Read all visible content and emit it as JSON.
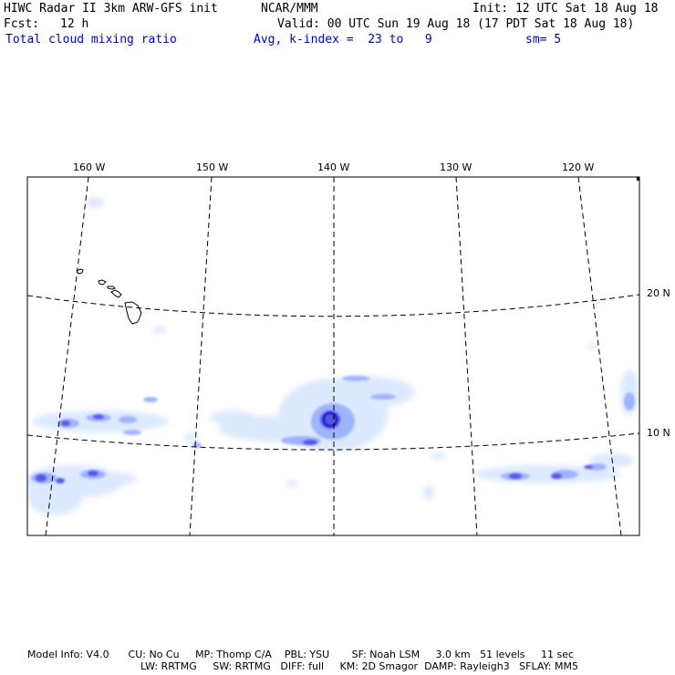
{
  "header": {
    "title": "HIWC Radar II 3km ARW-GFS init",
    "org": "NCAR/MMM",
    "init": "Init: 12 UTC Sat 18 Aug 18",
    "fcst_label": "Fcst:",
    "fcst_value": "12 h",
    "valid": "Valid: 00 UTC Sun 19 Aug 18 (17 PDT Sat 18 Aug 18)",
    "field": "Total cloud mixing ratio",
    "avg": "Avg, k-index =  23 to   9",
    "sm": "sm= 5"
  },
  "map": {
    "lon_labels": [
      "160 W",
      "150 W",
      "140 W",
      "130 W",
      "120 W"
    ],
    "lat_labels": [
      "20 N",
      "10 N"
    ],
    "colors": {
      "cloud_light": "#dbe8ff",
      "cloud_mid": "#9fb4ff",
      "cloud_dark": "#5555e6",
      "cloud_core": "#2a2ad0",
      "grid": "#000000",
      "coast": "#000000"
    }
  },
  "footer": {
    "line1": "Model Info: V4.0      CU: No Cu     MP: Thomp C/A    PBL: YSU       SF: Noah LSM     3.0 km   51 levels     11 sec",
    "line2": "LW: RRTMG     SW: RRTMG   DIFF: full     KM: 2D Smagor  DAMP: Rayleigh3   SFLAY: MM5"
  }
}
